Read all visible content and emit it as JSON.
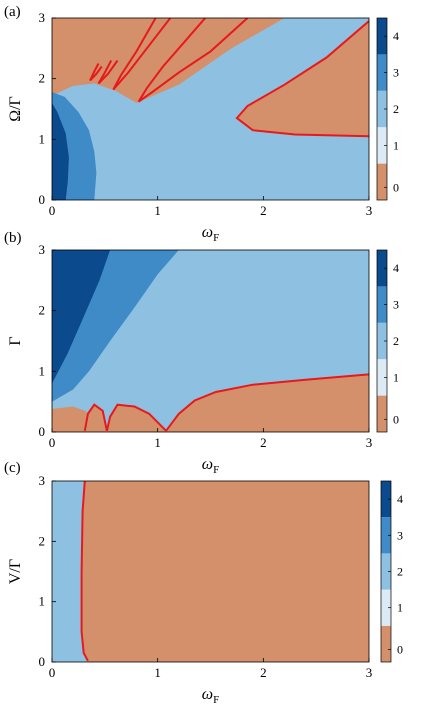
{
  "chart_data": [
    {
      "type": "heatmap",
      "panel": "(a)",
      "ylabel": "Ω/Γ",
      "xlabel_main": "ω",
      "xlabel_sub": "F",
      "xlim": [
        0,
        3
      ],
      "ylim": [
        0,
        3
      ],
      "xticks": [
        "0",
        "1",
        "2",
        "3"
      ],
      "yticks": [
        "0",
        "1",
        "2",
        "3"
      ],
      "colorbar": {
        "levels": [
          0,
          1,
          2,
          3,
          4
        ],
        "tick_labels": [
          "0",
          "1",
          "2",
          "3",
          "4"
        ]
      },
      "region_values": {
        "background": 0,
        "light_blue": 2,
        "mid_blue": 3,
        "dark_blue": 4
      },
      "boundary_curves": [
        {
          "name": "tongue-1",
          "points": [
            [
              3.0,
              1.05
            ],
            [
              2.3,
              1.08
            ],
            [
              1.9,
              1.15
            ],
            [
              1.75,
              1.35
            ],
            [
              1.85,
              1.55
            ],
            [
              2.2,
              1.9
            ],
            [
              2.6,
              2.35
            ],
            [
              3.0,
              2.95
            ]
          ]
        },
        {
          "name": "tongue-2",
          "points": [
            [
              0.82,
              1.62
            ],
            [
              0.9,
              1.85
            ],
            [
              1.05,
              2.2
            ],
            [
              1.25,
              2.6
            ],
            [
              1.45,
              3.0
            ]
          ]
        },
        {
          "name": "tongue-2b",
          "points": [
            [
              0.82,
              1.62
            ],
            [
              0.95,
              1.78
            ],
            [
              1.2,
              2.1
            ],
            [
              1.5,
              2.45
            ],
            [
              1.85,
              3.0
            ]
          ]
        },
        {
          "name": "tongue-3",
          "points": [
            [
              0.58,
              1.82
            ],
            [
              0.65,
              2.05
            ],
            [
              0.8,
              2.45
            ],
            [
              0.98,
              3.0
            ]
          ]
        },
        {
          "name": "tongue-3b",
          "points": [
            [
              0.58,
              1.82
            ],
            [
              0.72,
              2.1
            ],
            [
              0.92,
              2.55
            ],
            [
              1.12,
              3.0
            ]
          ]
        },
        {
          "name": "tongue-4",
          "points": [
            [
              0.44,
              1.92
            ],
            [
              0.5,
              2.1
            ],
            [
              0.56,
              2.3
            ]
          ]
        },
        {
          "name": "tongue-4b",
          "points": [
            [
              0.44,
              1.92
            ],
            [
              0.53,
              2.08
            ],
            [
              0.62,
              2.3
            ]
          ]
        },
        {
          "name": "tongue-5",
          "points": [
            [
              0.36,
              1.97
            ],
            [
              0.4,
              2.12
            ],
            [
              0.44,
              2.25
            ]
          ]
        },
        {
          "name": "tongue-5b",
          "points": [
            [
              0.36,
              1.97
            ],
            [
              0.42,
              2.08
            ],
            [
              0.47,
              2.2
            ]
          ]
        }
      ]
    },
    {
      "type": "heatmap",
      "panel": "(b)",
      "ylabel": "Γ",
      "xlabel_main": "ω",
      "xlabel_sub": "F",
      "xlim": [
        0,
        3
      ],
      "ylim": [
        0,
        3
      ],
      "xticks": [
        "0",
        "1",
        "2",
        "3"
      ],
      "yticks": [
        "0",
        "1",
        "2",
        "3"
      ],
      "colorbar": {
        "levels": [
          0,
          1,
          2,
          3,
          4
        ],
        "tick_labels": [
          "0",
          "1",
          "2",
          "3",
          "4"
        ]
      },
      "region_values": {
        "background": 2,
        "lower_region": 0,
        "mid_blue": 3,
        "dark_blue": 4
      },
      "boundary_curves": [
        {
          "name": "main-boundary",
          "points": [
            [
              1.08,
              0.02
            ],
            [
              1.2,
              0.3
            ],
            [
              1.35,
              0.52
            ],
            [
              1.55,
              0.66
            ],
            [
              1.9,
              0.78
            ],
            [
              2.4,
              0.86
            ],
            [
              3.0,
              0.95
            ]
          ]
        },
        {
          "name": "left-arc",
          "points": [
            [
              0.52,
              0.02
            ],
            [
              0.55,
              0.25
            ],
            [
              0.62,
              0.45
            ],
            [
              0.78,
              0.42
            ],
            [
              0.92,
              0.3
            ],
            [
              1.08,
              0.02
            ]
          ]
        },
        {
          "name": "small-arc",
          "points": [
            [
              0.31,
              0.02
            ],
            [
              0.34,
              0.3
            ],
            [
              0.4,
              0.45
            ],
            [
              0.48,
              0.35
            ],
            [
              0.52,
              0.02
            ]
          ]
        }
      ]
    },
    {
      "type": "heatmap",
      "panel": "(c)",
      "ylabel": "V/Γ",
      "xlabel_main": "ω",
      "xlabel_sub": "F",
      "xlim": [
        0,
        3
      ],
      "ylim": [
        0,
        3
      ],
      "xticks": [
        "0",
        "1",
        "2",
        "3"
      ],
      "yticks": [
        "0",
        "1",
        "2",
        "3"
      ],
      "colorbar": {
        "levels": [
          0,
          1,
          2,
          3,
          4
        ],
        "tick_labels": [
          "0",
          "1",
          "2",
          "3",
          "4"
        ]
      },
      "region_values": {
        "left_strip": 2,
        "background": 0
      },
      "boundary_curves": [
        {
          "name": "vertical-boundary",
          "points": [
            [
              0.34,
              0.02
            ],
            [
              0.3,
              0.15
            ],
            [
              0.28,
              0.5
            ],
            [
              0.28,
              1.5
            ],
            [
              0.29,
              2.5
            ],
            [
              0.31,
              3.0
            ]
          ]
        }
      ]
    }
  ],
  "colors": {
    "level0": "#d4906a",
    "level1": "#dceaf5",
    "level2": "#8ec0e2",
    "level3": "#3f8bc7",
    "level4": "#0b4a8c",
    "curve": "#e8191b"
  }
}
